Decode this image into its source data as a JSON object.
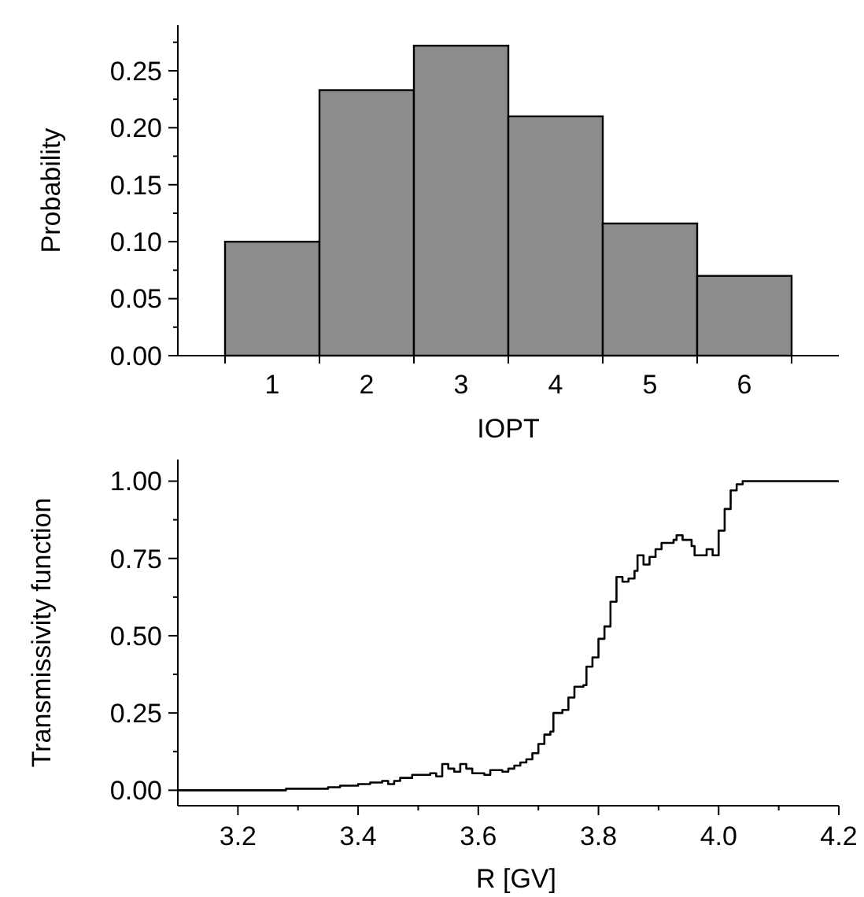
{
  "chart_data": [
    {
      "type": "bar",
      "xlabel": "IOPT",
      "ylabel": "Probability",
      "categories": [
        "1",
        "2",
        "3",
        "4",
        "5",
        "6"
      ],
      "values": [
        0.1,
        0.233,
        0.272,
        0.21,
        0.116,
        0.07
      ],
      "color": "#8c8c8c",
      "ylim": [
        0,
        0.29
      ],
      "yticks": [
        {
          "value": 0,
          "label": "0.00"
        },
        {
          "value": 0.025,
          "label": null
        },
        {
          "value": 0.05,
          "label": "0.05"
        },
        {
          "value": 0.075,
          "label": null
        },
        {
          "value": 0.1,
          "label": "0.10"
        },
        {
          "value": 0.125,
          "label": null
        },
        {
          "value": 0.15,
          "label": "0.15"
        },
        {
          "value": 0.175,
          "label": null
        },
        {
          "value": 0.2,
          "label": "0.20"
        },
        {
          "value": 0.225,
          "label": null
        },
        {
          "value": 0.25,
          "label": "0.25"
        },
        {
          "value": 0.275,
          "label": null
        }
      ],
      "grid": false
    },
    {
      "type": "step",
      "xlabel": "R [GV]",
      "ylabel": "Transmissivity function",
      "color": "#000000",
      "x": [
        3.1,
        3.28,
        3.35,
        3.37,
        3.4,
        3.42,
        3.44,
        3.45,
        3.46,
        3.47,
        3.49,
        3.52,
        3.53,
        3.54,
        3.55,
        3.56,
        3.57,
        3.58,
        3.59,
        3.61,
        3.62,
        3.64,
        3.65,
        3.66,
        3.67,
        3.68,
        3.69,
        3.7,
        3.71,
        3.72,
        3.725,
        3.74,
        3.75,
        3.76,
        3.775,
        3.78,
        3.79,
        3.8,
        3.81,
        3.82,
        3.83,
        3.84,
        3.85,
        3.86,
        3.865,
        3.875,
        3.885,
        3.895,
        3.905,
        3.915,
        3.925,
        3.93,
        3.94,
        3.955,
        3.96,
        3.98,
        3.99,
        4.0,
        4.01,
        4.02,
        4.03,
        4.04,
        4.2
      ],
      "values": [
        0,
        0.005,
        0.01,
        0.015,
        0.02,
        0.025,
        0.03,
        0.02,
        0.03,
        0.04,
        0.05,
        0.055,
        0.045,
        0.085,
        0.07,
        0.06,
        0.085,
        0.07,
        0.055,
        0.05,
        0.065,
        0.06,
        0.07,
        0.08,
        0.09,
        0.1,
        0.12,
        0.15,
        0.18,
        0.19,
        0.25,
        0.26,
        0.3,
        0.335,
        0.34,
        0.4,
        0.43,
        0.49,
        0.53,
        0.61,
        0.69,
        0.675,
        0.685,
        0.71,
        0.76,
        0.73,
        0.755,
        0.78,
        0.8,
        0.8,
        0.81,
        0.825,
        0.81,
        0.79,
        0.76,
        0.78,
        0.76,
        0.84,
        0.91,
        0.97,
        0.99,
        1.0,
        1.0
      ],
      "xlim": [
        3.1,
        4.2
      ],
      "ylim": [
        -0.05,
        1.07
      ],
      "xticks": [
        {
          "value": 3.2,
          "label": "3.2"
        },
        {
          "value": 3.3,
          "label": null
        },
        {
          "value": 3.4,
          "label": "3.4"
        },
        {
          "value": 3.5,
          "label": null
        },
        {
          "value": 3.6,
          "label": "3.6"
        },
        {
          "value": 3.7,
          "label": null
        },
        {
          "value": 3.8,
          "label": "3.8"
        },
        {
          "value": 3.9,
          "label": null
        },
        {
          "value": 4.0,
          "label": "4.0"
        },
        {
          "value": 4.1,
          "label": null
        },
        {
          "value": 4.2,
          "label": "4.2"
        }
      ],
      "yticks": [
        {
          "value": 0,
          "label": "0.00"
        },
        {
          "value": 0.125,
          "label": null
        },
        {
          "value": 0.25,
          "label": "0.25"
        },
        {
          "value": 0.375,
          "label": null
        },
        {
          "value": 0.5,
          "label": "0.50"
        },
        {
          "value": 0.625,
          "label": null
        },
        {
          "value": 0.75,
          "label": "0.75"
        },
        {
          "value": 0.875,
          "label": null
        },
        {
          "value": 1.0,
          "label": "1.00"
        }
      ],
      "grid": false
    }
  ]
}
